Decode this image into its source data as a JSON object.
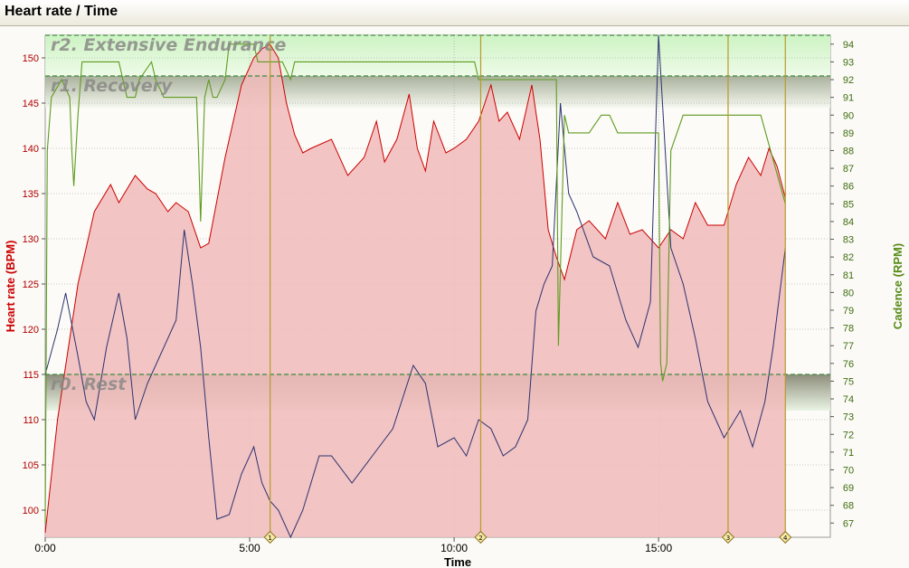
{
  "window": {
    "title": "Heart rate / Time"
  },
  "chart_data": {
    "type": "area",
    "title": "Heart rate / Time",
    "xlabel": "Time",
    "ylabel_left": "Heart rate (BPM)",
    "ylabel_right": "Cadence (RPM)",
    "xlim_min": [
      0,
      19.2
    ],
    "ylim_left": [
      97,
      152.5
    ],
    "ylim_right": [
      66.2,
      94.5
    ],
    "x_ticks": [
      {
        "min": 0,
        "label": "0:00"
      },
      {
        "min": 5,
        "label": "5:00"
      },
      {
        "min": 10,
        "label": "10:00"
      },
      {
        "min": 15,
        "label": "15:00"
      }
    ],
    "y_ticks_left": [
      100,
      105,
      110,
      115,
      120,
      125,
      130,
      135,
      140,
      145,
      150
    ],
    "y_ticks_right": [
      67,
      68,
      69,
      70,
      71,
      72,
      73,
      74,
      75,
      76,
      77,
      78,
      79,
      80,
      81,
      82,
      83,
      84,
      85,
      86,
      87,
      88,
      89,
      90,
      91,
      92,
      93,
      94
    ],
    "zones": [
      {
        "name": "r0. Rest",
        "from": 115,
        "to": 111
      },
      {
        "name": "r1. Recovery",
        "from": 148,
        "to": 144.5
      },
      {
        "name": "r2. Extensive Endurance",
        "from": 152.5,
        "to": 148
      }
    ],
    "laps": [
      {
        "label": "1",
        "x": 5.5
      },
      {
        "label": "2",
        "x": 10.65
      },
      {
        "label": "3",
        "x": 16.7
      },
      {
        "label": "4",
        "x": 18.1
      }
    ],
    "colors": {
      "hr_line": "#cc0000",
      "hr_fill": "#f0bcbc",
      "cadence": "#5f9b1f",
      "secondary": "#2c3270",
      "lap": "#b89a2a",
      "zone_line": "#3c8a3c"
    },
    "series": [
      {
        "name": "Heart rate",
        "axis": "left",
        "x_min": [
          0,
          0.3,
          0.8,
          1.2,
          1.6,
          1.8,
          2.2,
          2.5,
          2.7,
          3.0,
          3.2,
          3.5,
          3.8,
          4.0,
          4.4,
          4.8,
          5.1,
          5.3,
          5.5,
          5.7,
          5.9,
          6.1,
          6.3,
          6.5,
          7.0,
          7.4,
          7.8,
          8.1,
          8.3,
          8.6,
          8.9,
          9.1,
          9.3,
          9.5,
          9.8,
          10.0,
          10.3,
          10.6,
          10.9,
          11.1,
          11.3,
          11.6,
          11.9,
          12.1,
          12.3,
          12.5,
          12.7,
          13.0,
          13.3,
          13.7,
          14.0,
          14.3,
          14.6,
          15.0,
          15.3,
          15.6,
          15.9,
          16.2,
          16.6,
          16.9,
          17.2,
          17.5,
          17.7,
          17.9,
          18.1
        ],
        "values": [
          97.5,
          110,
          125,
          133,
          136,
          134,
          137,
          135.5,
          135,
          133,
          134,
          133,
          129,
          129.5,
          139,
          147,
          150,
          151,
          151.5,
          150,
          145,
          141.5,
          139.5,
          140,
          141,
          137,
          139,
          143,
          138.5,
          141,
          146,
          140,
          137.5,
          143,
          139.5,
          140,
          141,
          143,
          147,
          143,
          144,
          141,
          147,
          141,
          131,
          128,
          125.5,
          131,
          132,
          130,
          134,
          130.5,
          131,
          129,
          131,
          130,
          134,
          131.5,
          131.5,
          136,
          139,
          137,
          140,
          138,
          134.5
        ]
      },
      {
        "name": "Cadence",
        "axis": "right",
        "x_min": [
          0,
          0.05,
          0.15,
          0.4,
          0.6,
          0.65,
          0.7,
          0.8,
          0.9,
          1.3,
          1.8,
          2.0,
          2.2,
          2.3,
          2.6,
          2.7,
          2.9,
          3.7,
          3.75,
          3.8,
          3.9,
          4.0,
          4.1,
          4.2,
          4.4,
          4.5,
          5.1,
          5.2,
          5.8,
          6.0,
          6.1,
          10.5,
          10.6,
          10.9,
          12.5,
          12.55,
          12.7,
          12.8,
          13.0,
          13.3,
          13.6,
          13.8,
          14.0,
          14.1,
          14.4,
          14.6,
          14.9,
          15.0,
          15.05,
          15.1,
          15.2,
          15.3,
          15.6,
          16.0,
          16.2,
          16.4,
          17.5,
          18.1
        ],
        "values": [
          67,
          88,
          91,
          92,
          91,
          88,
          86,
          90,
          93,
          93,
          93,
          91,
          91,
          92,
          93,
          92,
          91,
          91,
          88,
          84,
          91,
          92,
          91,
          91,
          92,
          94,
          94,
          93,
          93,
          92,
          93,
          93,
          92,
          92,
          92,
          77,
          90,
          89,
          89,
          89,
          90,
          90,
          89,
          89,
          89,
          89,
          89,
          89,
          76,
          75,
          76,
          88,
          90,
          90,
          90,
          90,
          90,
          85
        ]
      },
      {
        "name": "",
        "axis": "left",
        "x_min": [
          0,
          0.3,
          0.5,
          0.8,
          1.0,
          1.2,
          1.5,
          1.8,
          2.0,
          2.2,
          2.5,
          2.8,
          3.2,
          3.4,
          3.6,
          3.8,
          4.0,
          4.2,
          4.5,
          4.8,
          5.1,
          5.3,
          5.5,
          5.7,
          6.0,
          6.3,
          6.7,
          7.0,
          7.5,
          8.0,
          8.5,
          9.0,
          9.3,
          9.6,
          10.0,
          10.3,
          10.6,
          10.9,
          11.2,
          11.5,
          11.8,
          12.0,
          12.2,
          12.4,
          12.6,
          12.8,
          13.0,
          13.4,
          13.8,
          14.2,
          14.5,
          14.8,
          15.0,
          15.3,
          15.6,
          15.9,
          16.2,
          16.6,
          17.0,
          17.3,
          17.6,
          17.8,
          18.1
        ],
        "values": [
          115,
          120,
          124,
          117,
          112,
          110,
          118,
          124,
          119,
          110,
          114,
          117,
          121,
          131,
          125,
          118,
          108,
          99,
          99.5,
          104,
          107,
          103,
          101,
          100,
          97,
          100,
          106,
          106,
          103,
          106,
          109,
          116,
          114,
          107,
          108,
          106,
          110,
          109,
          106,
          107,
          110,
          122,
          125,
          127,
          145,
          135,
          133,
          128,
          127,
          121,
          118,
          123,
          154,
          129,
          125,
          119,
          112,
          108,
          111,
          107,
          112,
          118,
          129
        ]
      }
    ]
  }
}
